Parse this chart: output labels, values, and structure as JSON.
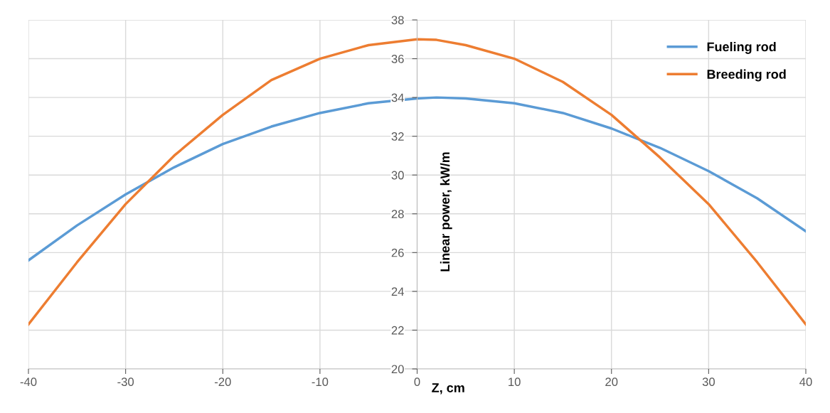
{
  "chart_data": {
    "type": "line",
    "xlabel": "Z, cm",
    "ylabel": "Linear power, kW/m",
    "x": [
      -40,
      -35,
      -30,
      -25,
      -20,
      -15,
      -10,
      -5,
      0,
      2,
      5,
      10,
      15,
      20,
      25,
      30,
      35,
      40
    ],
    "series": [
      {
        "name": "Fueling rod",
        "color": "#5b9bd5",
        "values": [
          25.6,
          27.4,
          29.0,
          30.4,
          31.6,
          32.5,
          33.2,
          33.7,
          33.95,
          34.0,
          33.95,
          33.7,
          33.2,
          32.4,
          31.4,
          30.2,
          28.8,
          27.1
        ]
      },
      {
        "name": "Breeding rod",
        "color": "#ed7d31",
        "values": [
          22.3,
          25.5,
          28.5,
          31.0,
          33.1,
          34.9,
          36.0,
          36.7,
          37.0,
          36.97,
          36.7,
          36.0,
          34.8,
          33.1,
          30.9,
          28.5,
          25.5,
          22.3
        ]
      }
    ],
    "xlim": [
      -40,
      40
    ],
    "xticks": [
      -40,
      -30,
      -20,
      -10,
      0,
      10,
      20,
      30,
      40
    ],
    "ylim": [
      20,
      38
    ],
    "yticks": [
      20,
      22,
      24,
      26,
      28,
      30,
      32,
      34,
      36,
      38
    ],
    "grid": true,
    "legend": "top right",
    "marker": "none",
    "line_style": "solid"
  }
}
